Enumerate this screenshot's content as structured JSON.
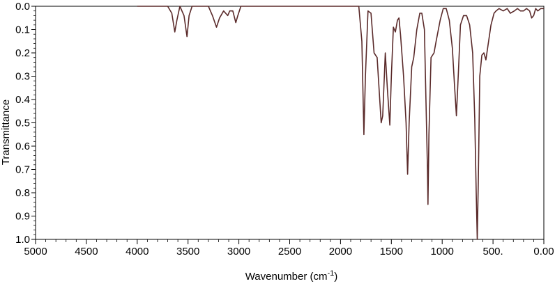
{
  "chart_data": {
    "type": "line",
    "title": "",
    "xlabel": "Wavenumber (cm",
    "xlabel_sup": "-1",
    "xlabel_suffix": ")",
    "ylabel": "Transmittance",
    "xlim": [
      5000,
      0
    ],
    "ylim": [
      0,
      1.0
    ],
    "y_inverted": true,
    "grid": false,
    "x_ticks": [
      {
        "value": 5000,
        "label": "5000"
      },
      {
        "value": 4500,
        "label": "4500"
      },
      {
        "value": 4000,
        "label": "4000"
      },
      {
        "value": 3500,
        "label": "3500"
      },
      {
        "value": 3000,
        "label": "3000"
      },
      {
        "value": 2500,
        "label": "2500"
      },
      {
        "value": 2000,
        "label": "2000"
      },
      {
        "value": 1500,
        "label": "1500"
      },
      {
        "value": 1000,
        "label": "1000"
      },
      {
        "value": 500,
        "label": "500."
      },
      {
        "value": 0,
        "label": "0.00"
      }
    ],
    "y_ticks": [
      {
        "value": 0.0,
        "label": "0.0"
      },
      {
        "value": 0.1,
        "label": "0.1"
      },
      {
        "value": 0.2,
        "label": "0.2"
      },
      {
        "value": 0.3,
        "label": "0.3"
      },
      {
        "value": 0.4,
        "label": "0.4"
      },
      {
        "value": 0.5,
        "label": "0.5"
      },
      {
        "value": 0.6,
        "label": "0.6"
      },
      {
        "value": 0.7,
        "label": "0.7"
      },
      {
        "value": 0.8,
        "label": "0.8"
      },
      {
        "value": 0.9,
        "label": "0.9"
      },
      {
        "value": 1.0,
        "label": "1.0"
      }
    ],
    "series": [
      {
        "color": "#5a2a2a",
        "points": [
          [
            4000,
            0.0
          ],
          [
            3700,
            0.0
          ],
          [
            3660,
            0.03
          ],
          [
            3630,
            0.11
          ],
          [
            3610,
            0.06
          ],
          [
            3580,
            0.0
          ],
          [
            3540,
            0.04
          ],
          [
            3510,
            0.13
          ],
          [
            3490,
            0.04
          ],
          [
            3460,
            0.0
          ],
          [
            3300,
            0.0
          ],
          [
            3260,
            0.04
          ],
          [
            3220,
            0.09
          ],
          [
            3190,
            0.05
          ],
          [
            3150,
            0.02
          ],
          [
            3110,
            0.04
          ],
          [
            3090,
            0.02
          ],
          [
            3060,
            0.02
          ],
          [
            3030,
            0.07
          ],
          [
            3010,
            0.04
          ],
          [
            2980,
            0.0
          ],
          [
            2950,
            0.0
          ],
          [
            1820,
            0.0
          ],
          [
            1790,
            0.15
          ],
          [
            1770,
            0.55
          ],
          [
            1755,
            0.3
          ],
          [
            1730,
            0.02
          ],
          [
            1700,
            0.03
          ],
          [
            1670,
            0.2
          ],
          [
            1640,
            0.22
          ],
          [
            1600,
            0.5
          ],
          [
            1585,
            0.47
          ],
          [
            1560,
            0.2
          ],
          [
            1540,
            0.35
          ],
          [
            1515,
            0.51
          ],
          [
            1500,
            0.3
          ],
          [
            1480,
            0.09
          ],
          [
            1460,
            0.11
          ],
          [
            1440,
            0.06
          ],
          [
            1425,
            0.05
          ],
          [
            1410,
            0.12
          ],
          [
            1380,
            0.3
          ],
          [
            1355,
            0.5
          ],
          [
            1340,
            0.72
          ],
          [
            1325,
            0.5
          ],
          [
            1300,
            0.26
          ],
          [
            1280,
            0.22
          ],
          [
            1250,
            0.1
          ],
          [
            1220,
            0.03
          ],
          [
            1200,
            0.03
          ],
          [
            1175,
            0.1
          ],
          [
            1160,
            0.4
          ],
          [
            1145,
            0.7
          ],
          [
            1140,
            0.85
          ],
          [
            1130,
            0.55
          ],
          [
            1110,
            0.22
          ],
          [
            1080,
            0.2
          ],
          [
            1060,
            0.15
          ],
          [
            1020,
            0.06
          ],
          [
            990,
            0.01
          ],
          [
            960,
            0.01
          ],
          [
            930,
            0.06
          ],
          [
            900,
            0.18
          ],
          [
            880,
            0.33
          ],
          [
            860,
            0.47
          ],
          [
            840,
            0.28
          ],
          [
            820,
            0.08
          ],
          [
            790,
            0.04
          ],
          [
            760,
            0.04
          ],
          [
            730,
            0.08
          ],
          [
            700,
            0.2
          ],
          [
            680,
            0.48
          ],
          [
            665,
            0.8
          ],
          [
            655,
            1.0
          ],
          [
            645,
            0.75
          ],
          [
            630,
            0.3
          ],
          [
            610,
            0.21
          ],
          [
            590,
            0.2
          ],
          [
            570,
            0.23
          ],
          [
            550,
            0.17
          ],
          [
            520,
            0.08
          ],
          [
            490,
            0.03
          ],
          [
            470,
            0.02
          ],
          [
            440,
            0.01
          ],
          [
            400,
            0.02
          ],
          [
            360,
            0.01
          ],
          [
            330,
            0.03
          ],
          [
            290,
            0.02
          ],
          [
            260,
            0.01
          ],
          [
            230,
            0.02
          ],
          [
            200,
            0.02
          ],
          [
            170,
            0.01
          ],
          [
            140,
            0.02
          ],
          [
            120,
            0.05
          ],
          [
            100,
            0.04
          ],
          [
            80,
            0.01
          ],
          [
            60,
            0.02
          ],
          [
            30,
            0.01
          ],
          [
            0,
            0.01
          ]
        ]
      }
    ]
  }
}
